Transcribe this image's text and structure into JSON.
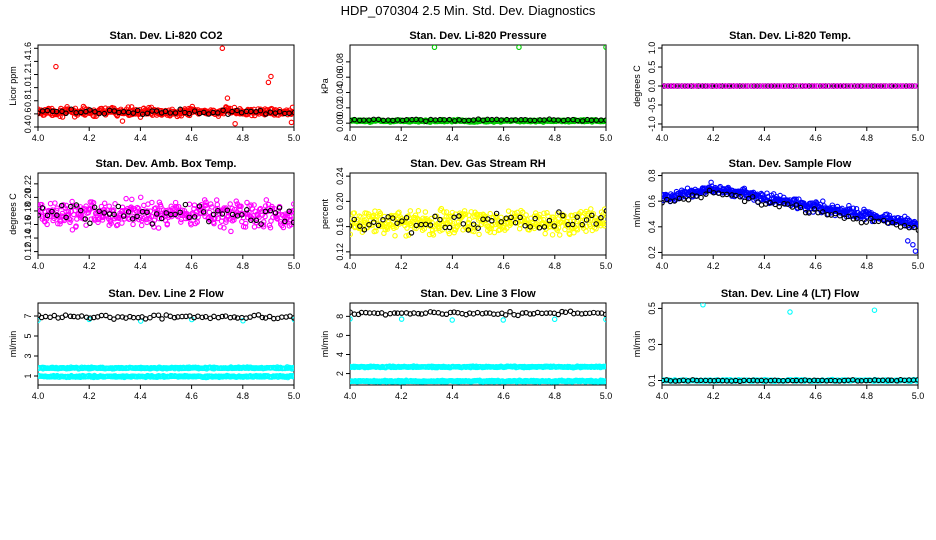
{
  "page_title": "HDP_070304  2.5 Min. Std. Dev. Diagnostics",
  "chart_data": [
    {
      "type": "scatter",
      "title": "Stan. Dev. Li-820 CO2",
      "xlabel": "",
      "ylabel": "Licor ppm",
      "xlim": [
        4.0,
        5.0
      ],
      "ylim": [
        0.4,
        1.65
      ],
      "xticks": [
        4.0,
        4.2,
        4.4,
        4.6,
        4.8,
        5.0
      ],
      "xtick_labels": [
        "4.0",
        "4.2",
        "4.4",
        "4.6",
        "4.8",
        "5.0"
      ],
      "yticks": [
        0.4,
        0.6,
        0.8,
        1.0,
        1.2,
        1.4,
        1.6
      ],
      "ytick_labels": [
        "0.4",
        "0.6",
        "0.8",
        "1.0",
        "1.2",
        "1.4",
        "1.6"
      ],
      "series": [
        {
          "name": "band",
          "color": "#ff0000",
          "n": 420,
          "center": 0.63,
          "spread": 0.09,
          "trend": 0.0,
          "outliers": [
            [
              4.07,
              1.32
            ],
            [
              4.72,
              1.6
            ],
            [
              4.91,
              1.17
            ],
            [
              4.9,
              1.08
            ],
            [
              4.74,
              0.84
            ],
            [
              4.33,
              0.49
            ],
            [
              4.77,
              0.45
            ],
            [
              4.99,
              0.47
            ]
          ]
        },
        {
          "name": "black",
          "color": "#000000",
          "n": 55,
          "center": 0.63,
          "spread": 0.06,
          "trend": 0.0,
          "outliers": []
        }
      ]
    },
    {
      "type": "scatter",
      "title": "Stan. Dev. Li-820 Pressure",
      "xlabel": "",
      "ylabel": "kPa",
      "xlim": [
        4.0,
        5.0
      ],
      "ylim": [
        -0.005,
        0.102
      ],
      "xticks": [
        4.0,
        4.2,
        4.4,
        4.6,
        4.8,
        5.0
      ],
      "xtick_labels": [
        "4.0",
        "4.2",
        "4.4",
        "4.6",
        "4.8",
        "5.0"
      ],
      "yticks": [
        0.0,
        0.02,
        0.04,
        0.06,
        0.08
      ],
      "ytick_labels": [
        "0.00",
        "0.02",
        "0.04",
        "0.06",
        "0.08"
      ],
      "series": [
        {
          "name": "band",
          "color": "#00cc00",
          "n": 380,
          "center": 0.003,
          "spread": 0.002,
          "trend": 0.0,
          "outliers": [
            [
              4.33,
              0.099
            ],
            [
              4.66,
              0.099
            ],
            [
              5.0,
              0.099
            ]
          ]
        },
        {
          "name": "black",
          "color": "#000000",
          "n": 55,
          "center": 0.004,
          "spread": 0.0015,
          "trend": 0.0,
          "outliers": []
        }
      ]
    },
    {
      "type": "scatter",
      "title": "Stan. Dev. Li-820 Temp.",
      "xlabel": "",
      "ylabel": "degrees C",
      "xlim": [
        4.0,
        5.0
      ],
      "ylim": [
        -1.08,
        1.08
      ],
      "xticks": [
        4.0,
        4.2,
        4.4,
        4.6,
        4.8,
        5.0
      ],
      "xtick_labels": [
        "4.0",
        "4.2",
        "4.4",
        "4.6",
        "4.8",
        "5.0"
      ],
      "yticks": [
        -1.0,
        -0.5,
        0.0,
        0.5,
        1.0
      ],
      "ytick_labels": [
        "-1.0",
        "-0.5",
        "0.0",
        "0.5",
        "1.0"
      ],
      "series": [
        {
          "name": "line",
          "color": "#000000",
          "n": 90,
          "center": 0.0,
          "spread": 0.0,
          "trend": 0.0,
          "outliers": []
        },
        {
          "name": "magenta",
          "color": "#ff00ff",
          "n": 75,
          "center": 0.0,
          "spread": 0.0,
          "trend": 0.0,
          "outliers": []
        }
      ]
    },
    {
      "type": "scatter",
      "title": "Stan. Dev. Amb. Box Temp.",
      "xlabel": "",
      "ylabel": "degrees C",
      "xlim": [
        4.0,
        5.0
      ],
      "ylim": [
        0.115,
        0.236
      ],
      "xticks": [
        4.0,
        4.2,
        4.4,
        4.6,
        4.8,
        5.0
      ],
      "xtick_labels": [
        "4.0",
        "4.2",
        "4.4",
        "4.6",
        "4.8",
        "5.0"
      ],
      "yticks": [
        0.12,
        0.14,
        0.16,
        0.18,
        0.2,
        0.22
      ],
      "ytick_labels": [
        "0.12",
        "0.14",
        "0.16",
        "0.18",
        "0.20",
        "0.22"
      ],
      "series": [
        {
          "name": "band",
          "color": "#ff00ff",
          "n": 420,
          "center": 0.175,
          "spread": 0.028,
          "trend": 0.0,
          "outliers": []
        },
        {
          "name": "black",
          "color": "#000000",
          "n": 55,
          "center": 0.177,
          "spread": 0.022,
          "trend": 0.0,
          "outliers": []
        }
      ]
    },
    {
      "type": "scatter",
      "title": "Stan. Dev. Gas Stream RH",
      "xlabel": "",
      "ylabel": "percent",
      "xlim": [
        4.0,
        5.0
      ],
      "ylim": [
        0.115,
        0.245
      ],
      "xticks": [
        4.0,
        4.2,
        4.4,
        4.6,
        4.8,
        5.0
      ],
      "xtick_labels": [
        "4.0",
        "4.2",
        "4.4",
        "4.6",
        "4.8",
        "5.0"
      ],
      "yticks": [
        0.12,
        0.16,
        0.2,
        0.24
      ],
      "ytick_labels": [
        "0.12",
        "0.16",
        "0.20",
        "0.24"
      ],
      "series": [
        {
          "name": "band",
          "color": "#ffff00",
          "n": 420,
          "center": 0.168,
          "spread": 0.028,
          "trend": 0.0,
          "outliers": []
        },
        {
          "name": "black",
          "color": "#000000",
          "n": 55,
          "center": 0.168,
          "spread": 0.022,
          "trend": 0.0,
          "outliers": []
        }
      ]
    },
    {
      "type": "scatter",
      "title": "Stan. Dev. Sample Flow",
      "xlabel": "",
      "ylabel": "ml/min",
      "xlim": [
        4.0,
        5.0
      ],
      "ylim": [
        0.18,
        0.82
      ],
      "xticks": [
        4.0,
        4.2,
        4.4,
        4.6,
        4.8,
        5.0
      ],
      "xtick_labels": [
        "4.0",
        "4.2",
        "4.4",
        "4.6",
        "4.8",
        "5.0"
      ],
      "yticks": [
        0.2,
        0.4,
        0.6,
        0.8
      ],
      "ytick_labels": [
        "0.2",
        "0.4",
        "0.6",
        "0.8"
      ],
      "series": [
        {
          "name": "band",
          "color": "#0000ff",
          "n": 420,
          "center": 0.6,
          "spread": 0.06,
          "trend": 1.0,
          "outliers": [
            [
              4.99,
              0.21
            ],
            [
              4.98,
              0.26
            ],
            [
              4.96,
              0.29
            ]
          ]
        },
        {
          "name": "black",
          "color": "#000000",
          "n": 60,
          "center": 0.56,
          "spread": 0.04,
          "trend": 1.0,
          "outliers": []
        }
      ]
    },
    {
      "type": "scatter",
      "title": "Stan. Dev. Line 2 Flow",
      "xlabel": "",
      "ylabel": "ml/min",
      "xlim": [
        4.0,
        5.0
      ],
      "ylim": [
        0.1,
        8.3
      ],
      "xticks": [
        4.0,
        4.2,
        4.4,
        4.6,
        4.8,
        5.0
      ],
      "xtick_labels": [
        "4.0",
        "4.2",
        "4.4",
        "4.6",
        "4.8",
        "5.0"
      ],
      "yticks": [
        1,
        3,
        5,
        7
      ],
      "ytick_labels": [
        "1",
        "3",
        "5",
        "7"
      ],
      "series": [
        {
          "name": "band-upper",
          "color": "#00ffff",
          "n": 320,
          "center": 1.8,
          "spread": 0.12,
          "trend": 0.0,
          "outliers": []
        },
        {
          "name": "band-lower",
          "color": "#00ffff",
          "n": 320,
          "center": 0.95,
          "spread": 0.12,
          "trend": 0.0,
          "outliers": []
        },
        {
          "name": "cyan-high",
          "color": "#00ffff",
          "n": 6,
          "center": 6.6,
          "spread": 0.2,
          "trend": 0.0,
          "outliers": []
        },
        {
          "name": "black",
          "color": "#000000",
          "n": 65,
          "center": 6.9,
          "spread": 0.3,
          "trend": 0.0,
          "outliers": []
        }
      ]
    },
    {
      "type": "scatter",
      "title": "Stan. Dev. Line 3 Flow",
      "xlabel": "",
      "ylabel": "ml/min",
      "xlim": [
        4.0,
        5.0
      ],
      "ylim": [
        0.8,
        9.4
      ],
      "xticks": [
        4.0,
        4.2,
        4.4,
        4.6,
        4.8,
        5.0
      ],
      "xtick_labels": [
        "4.0",
        "4.2",
        "4.4",
        "4.6",
        "4.8",
        "5.0"
      ],
      "yticks": [
        2,
        4,
        6,
        8
      ],
      "ytick_labels": [
        "2",
        "4",
        "6",
        "8"
      ],
      "series": [
        {
          "name": "band-upper",
          "color": "#00ffff",
          "n": 320,
          "center": 2.7,
          "spread": 0.12,
          "trend": 0.0,
          "outliers": []
        },
        {
          "name": "band-lower",
          "color": "#00ffff",
          "n": 320,
          "center": 1.2,
          "spread": 0.12,
          "trend": 0.0,
          "outliers": []
        },
        {
          "name": "cyan-high",
          "color": "#00ffff",
          "n": 6,
          "center": 7.7,
          "spread": 0.2,
          "trend": 0.0,
          "outliers": []
        },
        {
          "name": "black",
          "color": "#000000",
          "n": 65,
          "center": 8.3,
          "spread": 0.3,
          "trend": 0.0,
          "outliers": []
        }
      ]
    },
    {
      "type": "scatter",
      "title": "Stan. Dev. Line 4 (LT) Flow",
      "xlabel": "",
      "ylabel": "ml/min",
      "xlim": [
        4.0,
        5.0
      ],
      "ylim": [
        0.075,
        0.53
      ],
      "xticks": [
        4.0,
        4.2,
        4.4,
        4.6,
        4.8,
        5.0
      ],
      "xtick_labels": [
        "4.0",
        "4.2",
        "4.4",
        "4.6",
        "4.8",
        "5.0"
      ],
      "yticks": [
        0.1,
        0.3,
        0.5
      ],
      "ytick_labels": [
        "0.1",
        "0.3",
        "0.5"
      ],
      "series": [
        {
          "name": "band",
          "color": "#00ffff",
          "n": 260,
          "center": 0.1,
          "spread": 0.006,
          "trend": 0.0,
          "outliers": [
            [
              4.16,
              0.52
            ],
            [
              4.5,
              0.48
            ],
            [
              4.83,
              0.49
            ]
          ]
        },
        {
          "name": "black",
          "color": "#000000",
          "n": 60,
          "center": 0.1,
          "spread": 0.006,
          "trend": 0.0,
          "outliers": []
        }
      ]
    }
  ]
}
